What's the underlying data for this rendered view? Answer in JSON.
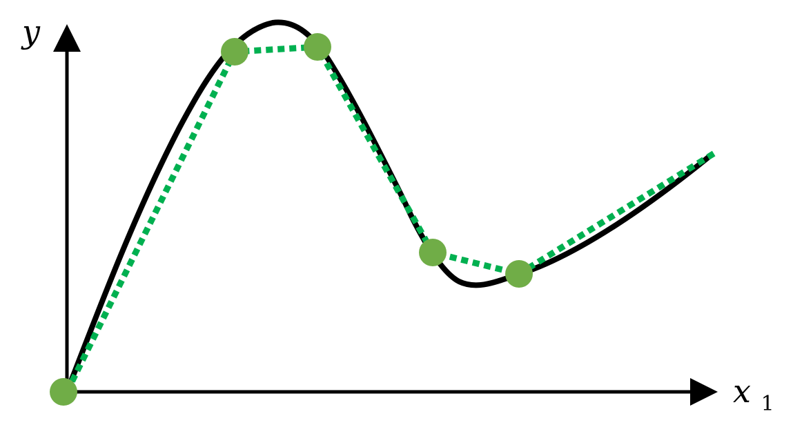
{
  "diagram": {
    "y_axis_label": "y",
    "x_axis_label_main": "x",
    "x_axis_label_sub": "1",
    "colors": {
      "axis": "#000000",
      "true_curve": "#000000",
      "approximation": "#00b050",
      "sample_point": "#70ad47",
      "background": "#ffffff"
    }
  }
}
